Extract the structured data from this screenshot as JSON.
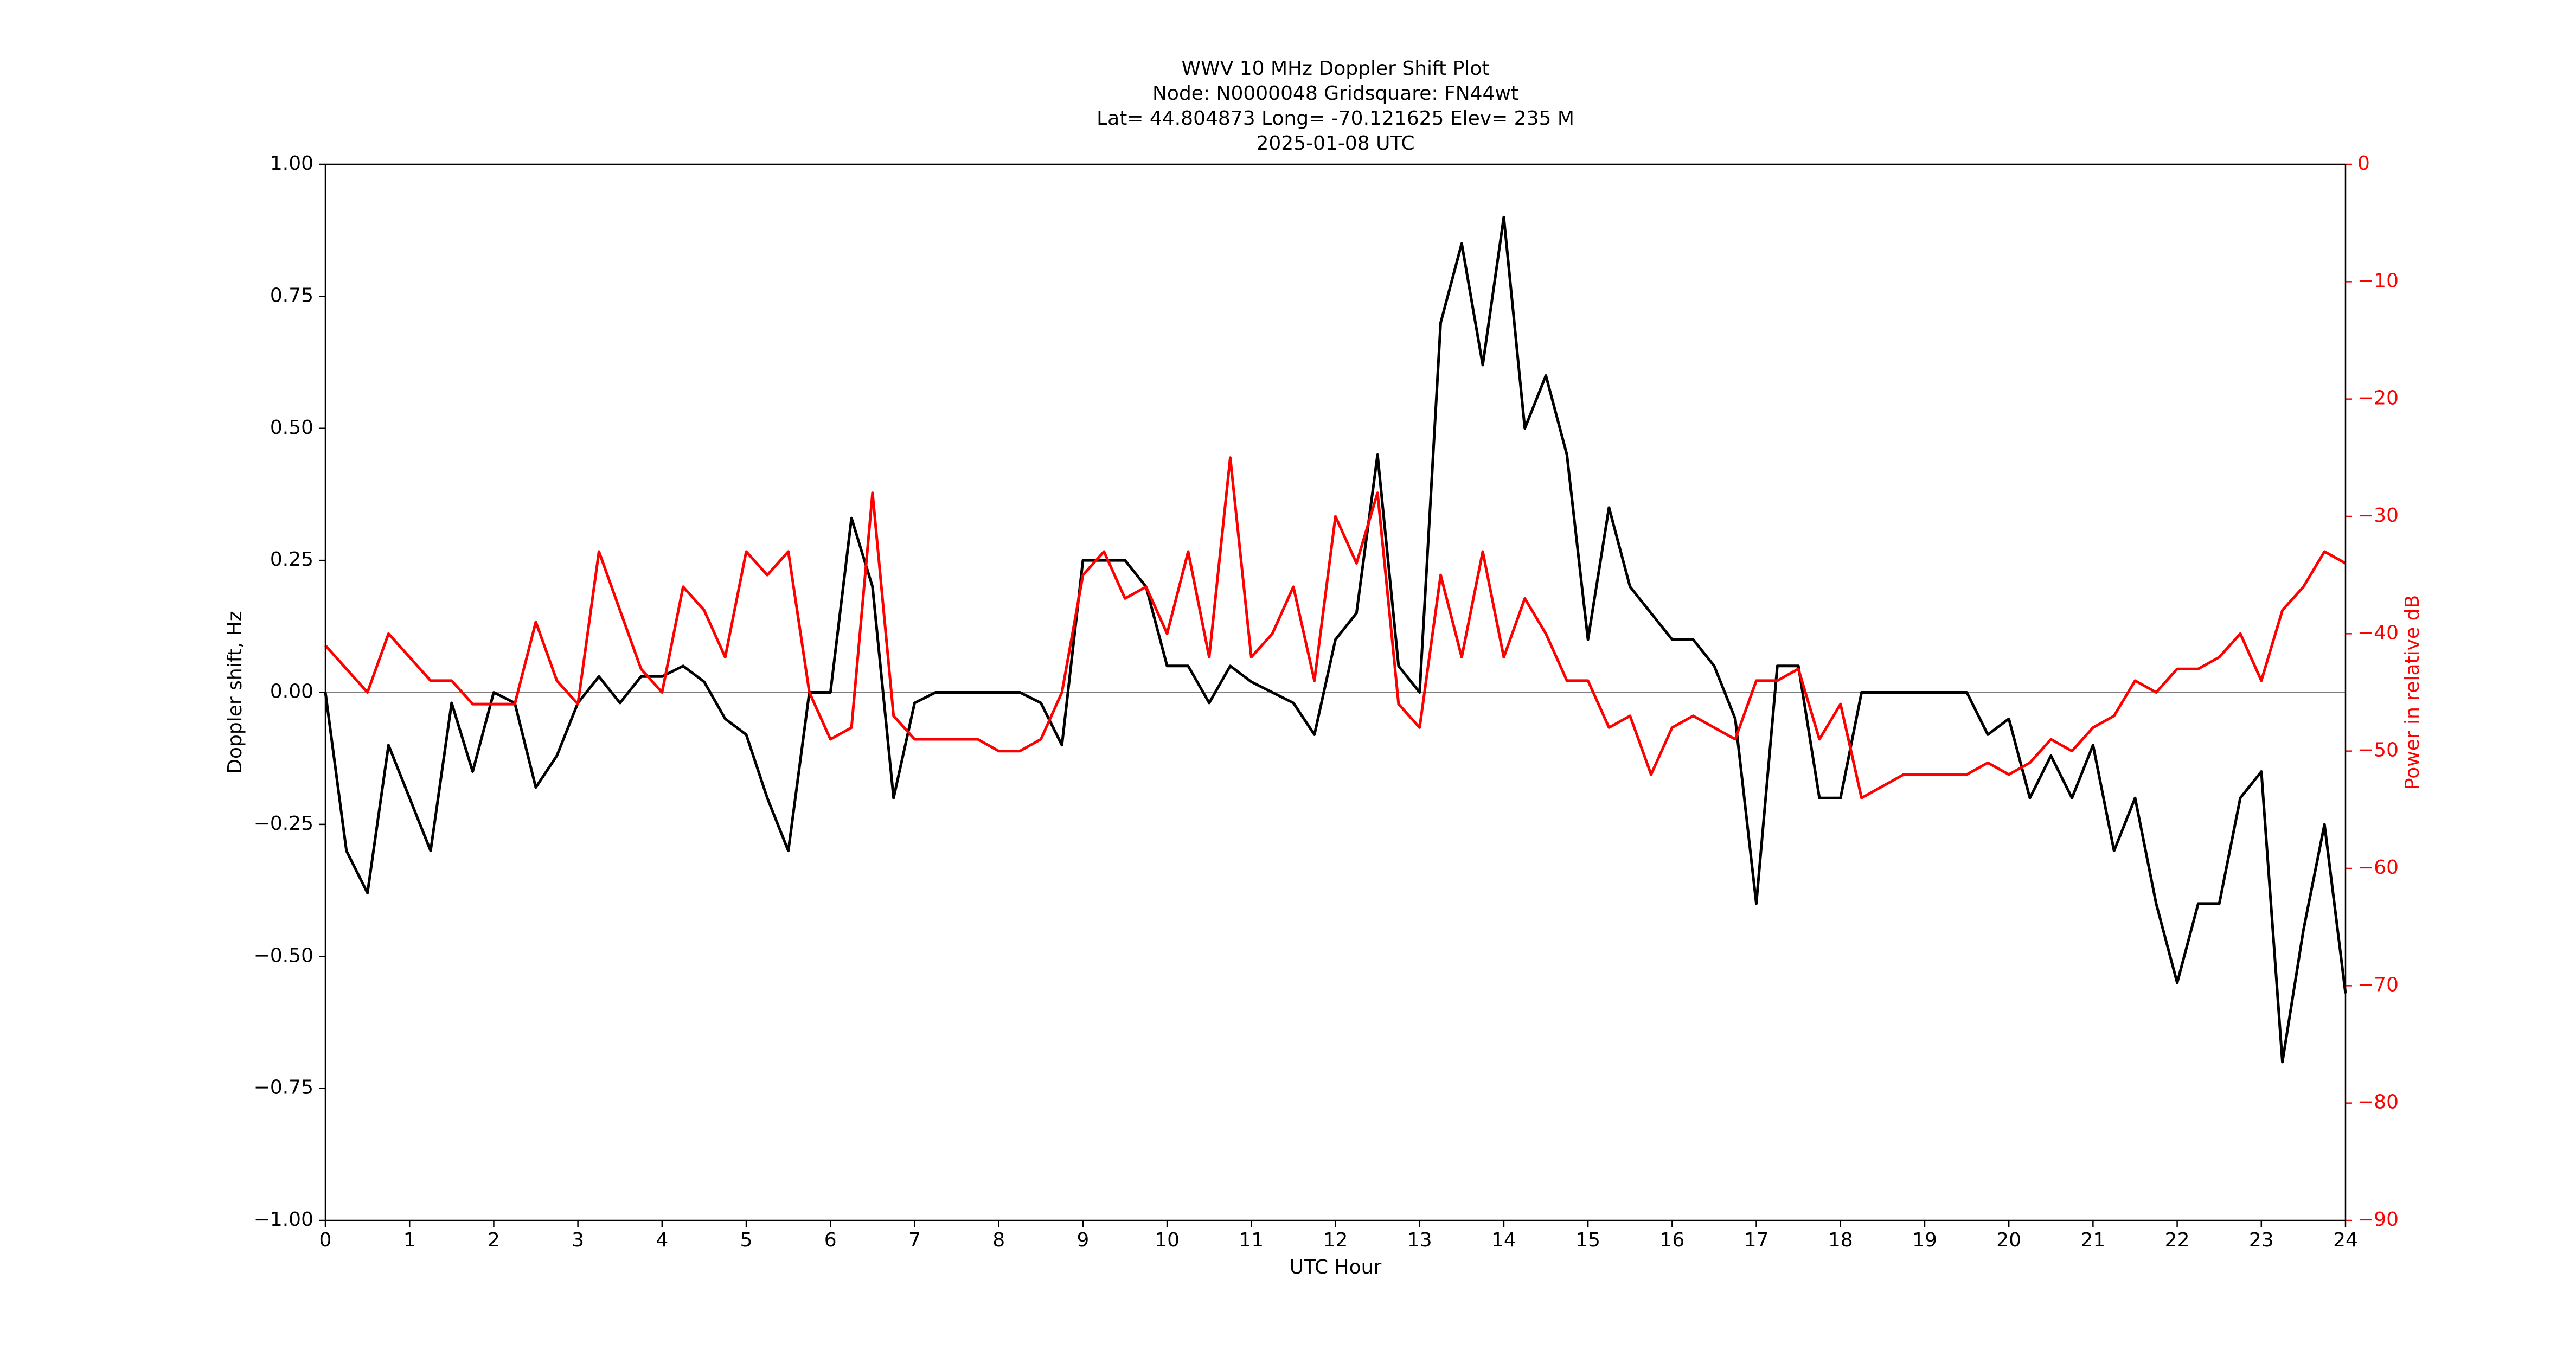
{
  "chart_data": {
    "type": "line",
    "title_lines": [
      "WWV 10 MHz Doppler Shift Plot",
      "Node:  N0000048     Gridsquare:  FN44wt",
      "Lat= 44.804873    Long= -70.121625    Elev= 235 M",
      "2025-01-08  UTC"
    ],
    "x_label": "UTC Hour",
    "y_label": "Doppler shift, Hz",
    "y2_label": "Power in relative dB",
    "y2_color": "#ff0000",
    "xlim": [
      0,
      24
    ],
    "xticks": [
      0,
      1,
      2,
      3,
      4,
      5,
      6,
      7,
      8,
      9,
      10,
      11,
      12,
      13,
      14,
      15,
      16,
      17,
      18,
      19,
      20,
      21,
      22,
      23,
      24
    ],
    "ylim": [
      -1,
      1
    ],
    "yticks": [
      {
        "value": -1,
        "label": "−1.00"
      },
      {
        "value": -0.75,
        "label": "−0.75"
      },
      {
        "value": -0.5,
        "label": "−0.50"
      },
      {
        "value": -0.25,
        "label": "−0.25"
      },
      {
        "value": 0,
        "label": "0.00"
      },
      {
        "value": 0.25,
        "label": "0.25"
      },
      {
        "value": 0.5,
        "label": "0.50"
      },
      {
        "value": 0.75,
        "label": "0.75"
      },
      {
        "value": 1,
        "label": "1.00"
      }
    ],
    "y2lim": [
      -90,
      0
    ],
    "y2ticks": [
      {
        "value": -90,
        "label": "−90"
      },
      {
        "value": -80,
        "label": "−80"
      },
      {
        "value": -70,
        "label": "−70"
      },
      {
        "value": -60,
        "label": "−60"
      },
      {
        "value": -50,
        "label": "−50"
      },
      {
        "value": -40,
        "label": "−40"
      },
      {
        "value": -30,
        "label": "−30"
      },
      {
        "value": -20,
        "label": "−20"
      },
      {
        "value": -10,
        "label": "−10"
      },
      0
    ],
    "reference_line": 0,
    "x": [
      0,
      0.25,
      0.5,
      0.75,
      1,
      1.25,
      1.5,
      1.75,
      2,
      2.25,
      2.5,
      2.75,
      3,
      3.25,
      3.5,
      3.75,
      4,
      4.25,
      4.5,
      4.75,
      5,
      5.25,
      5.5,
      5.75,
      6,
      6.25,
      6.5,
      6.75,
      7,
      7.25,
      7.5,
      7.75,
      8,
      8.25,
      8.5,
      8.75,
      9,
      9.25,
      9.5,
      9.75,
      10,
      10.25,
      10.5,
      10.75,
      11,
      11.25,
      11.5,
      11.75,
      12,
      12.25,
      12.5,
      12.75,
      13,
      13.25,
      13.5,
      13.75,
      14,
      14.25,
      14.5,
      14.75,
      15,
      15.25,
      15.5,
      15.75,
      16,
      16.25,
      16.5,
      16.75,
      17,
      17.25,
      17.5,
      17.75,
      18,
      18.25,
      18.5,
      18.75,
      19,
      19.25,
      19.5,
      19.75,
      20,
      20.25,
      20.5,
      20.75,
      21,
      21.25,
      21.5,
      21.75,
      22,
      22.25,
      22.5,
      22.75,
      23,
      23.25,
      23.5,
      23.75,
      24
    ],
    "series": [
      {
        "color": "#000000",
        "values": [
          0,
          -0.3,
          -0.38,
          -0.1,
          -0.2,
          -0.3,
          -0.02,
          -0.15,
          0,
          -0.02,
          -0.18,
          -0.12,
          -0.02,
          0.03,
          -0.02,
          0.03,
          0.03,
          0.05,
          0.02,
          -0.05,
          -0.08,
          -0.2,
          -0.3,
          0,
          0,
          0.33,
          0.2,
          -0.2,
          -0.02,
          0,
          0,
          0,
          0,
          0,
          -0.02,
          -0.1,
          0.25,
          0.25,
          0.25,
          0.2,
          0.05,
          0.05,
          -0.02,
          0.05,
          0.02,
          0,
          -0.02,
          -0.08,
          0.1,
          0.15,
          0.45,
          0.05,
          0,
          0.7,
          0.85,
          0.62,
          0.9,
          0.5,
          0.6,
          0.45,
          0.1,
          0.35,
          0.2,
          0.15,
          0.1,
          0.1,
          0.05,
          -0.05,
          -0.4,
          0.05,
          0.05,
          -0.2,
          -0.2,
          0,
          0,
          0,
          0,
          0,
          0,
          -0.08,
          -0.05,
          -0.2,
          -0.12,
          -0.2,
          -0.1,
          -0.3,
          -0.2,
          -0.4,
          -0.55,
          -0.4,
          -0.4,
          -0.2,
          -0.15,
          -0.7,
          -0.45,
          -0.25,
          -0.57
        ]
      },
      {
        "color": "#ff0000",
        "axis": "y2",
        "values": [
          -41,
          -43,
          -45,
          -40,
          -42,
          -44,
          -44,
          -46,
          -46,
          -46,
          -39,
          -44,
          -46,
          -33,
          -38,
          -43,
          -45,
          -36,
          -38,
          -42,
          -33,
          -35,
          -33,
          -45,
          -49,
          -48,
          -28,
          -47,
          -49,
          -49,
          -49,
          -49,
          -50,
          -50,
          -49,
          -45,
          -35,
          -33,
          -37,
          -36,
          -40,
          -33,
          -42,
          -25,
          -42,
          -40,
          -36,
          -44,
          -30,
          -34,
          -28,
          -46,
          -48,
          -35,
          -42,
          -33,
          -42,
          -37,
          -40,
          -44,
          -44,
          -48,
          -47,
          -52,
          -48,
          -47,
          -48,
          -49,
          -44,
          -44,
          -43,
          -49,
          -46,
          -54,
          -53,
          -52,
          -52,
          -52,
          -52,
          -51,
          -52,
          -51,
          -49,
          -50,
          -48,
          -47,
          -44,
          -45,
          -43,
          -43,
          -42,
          -40,
          -44,
          -38,
          -36,
          -33,
          -34
        ]
      }
    ]
  }
}
